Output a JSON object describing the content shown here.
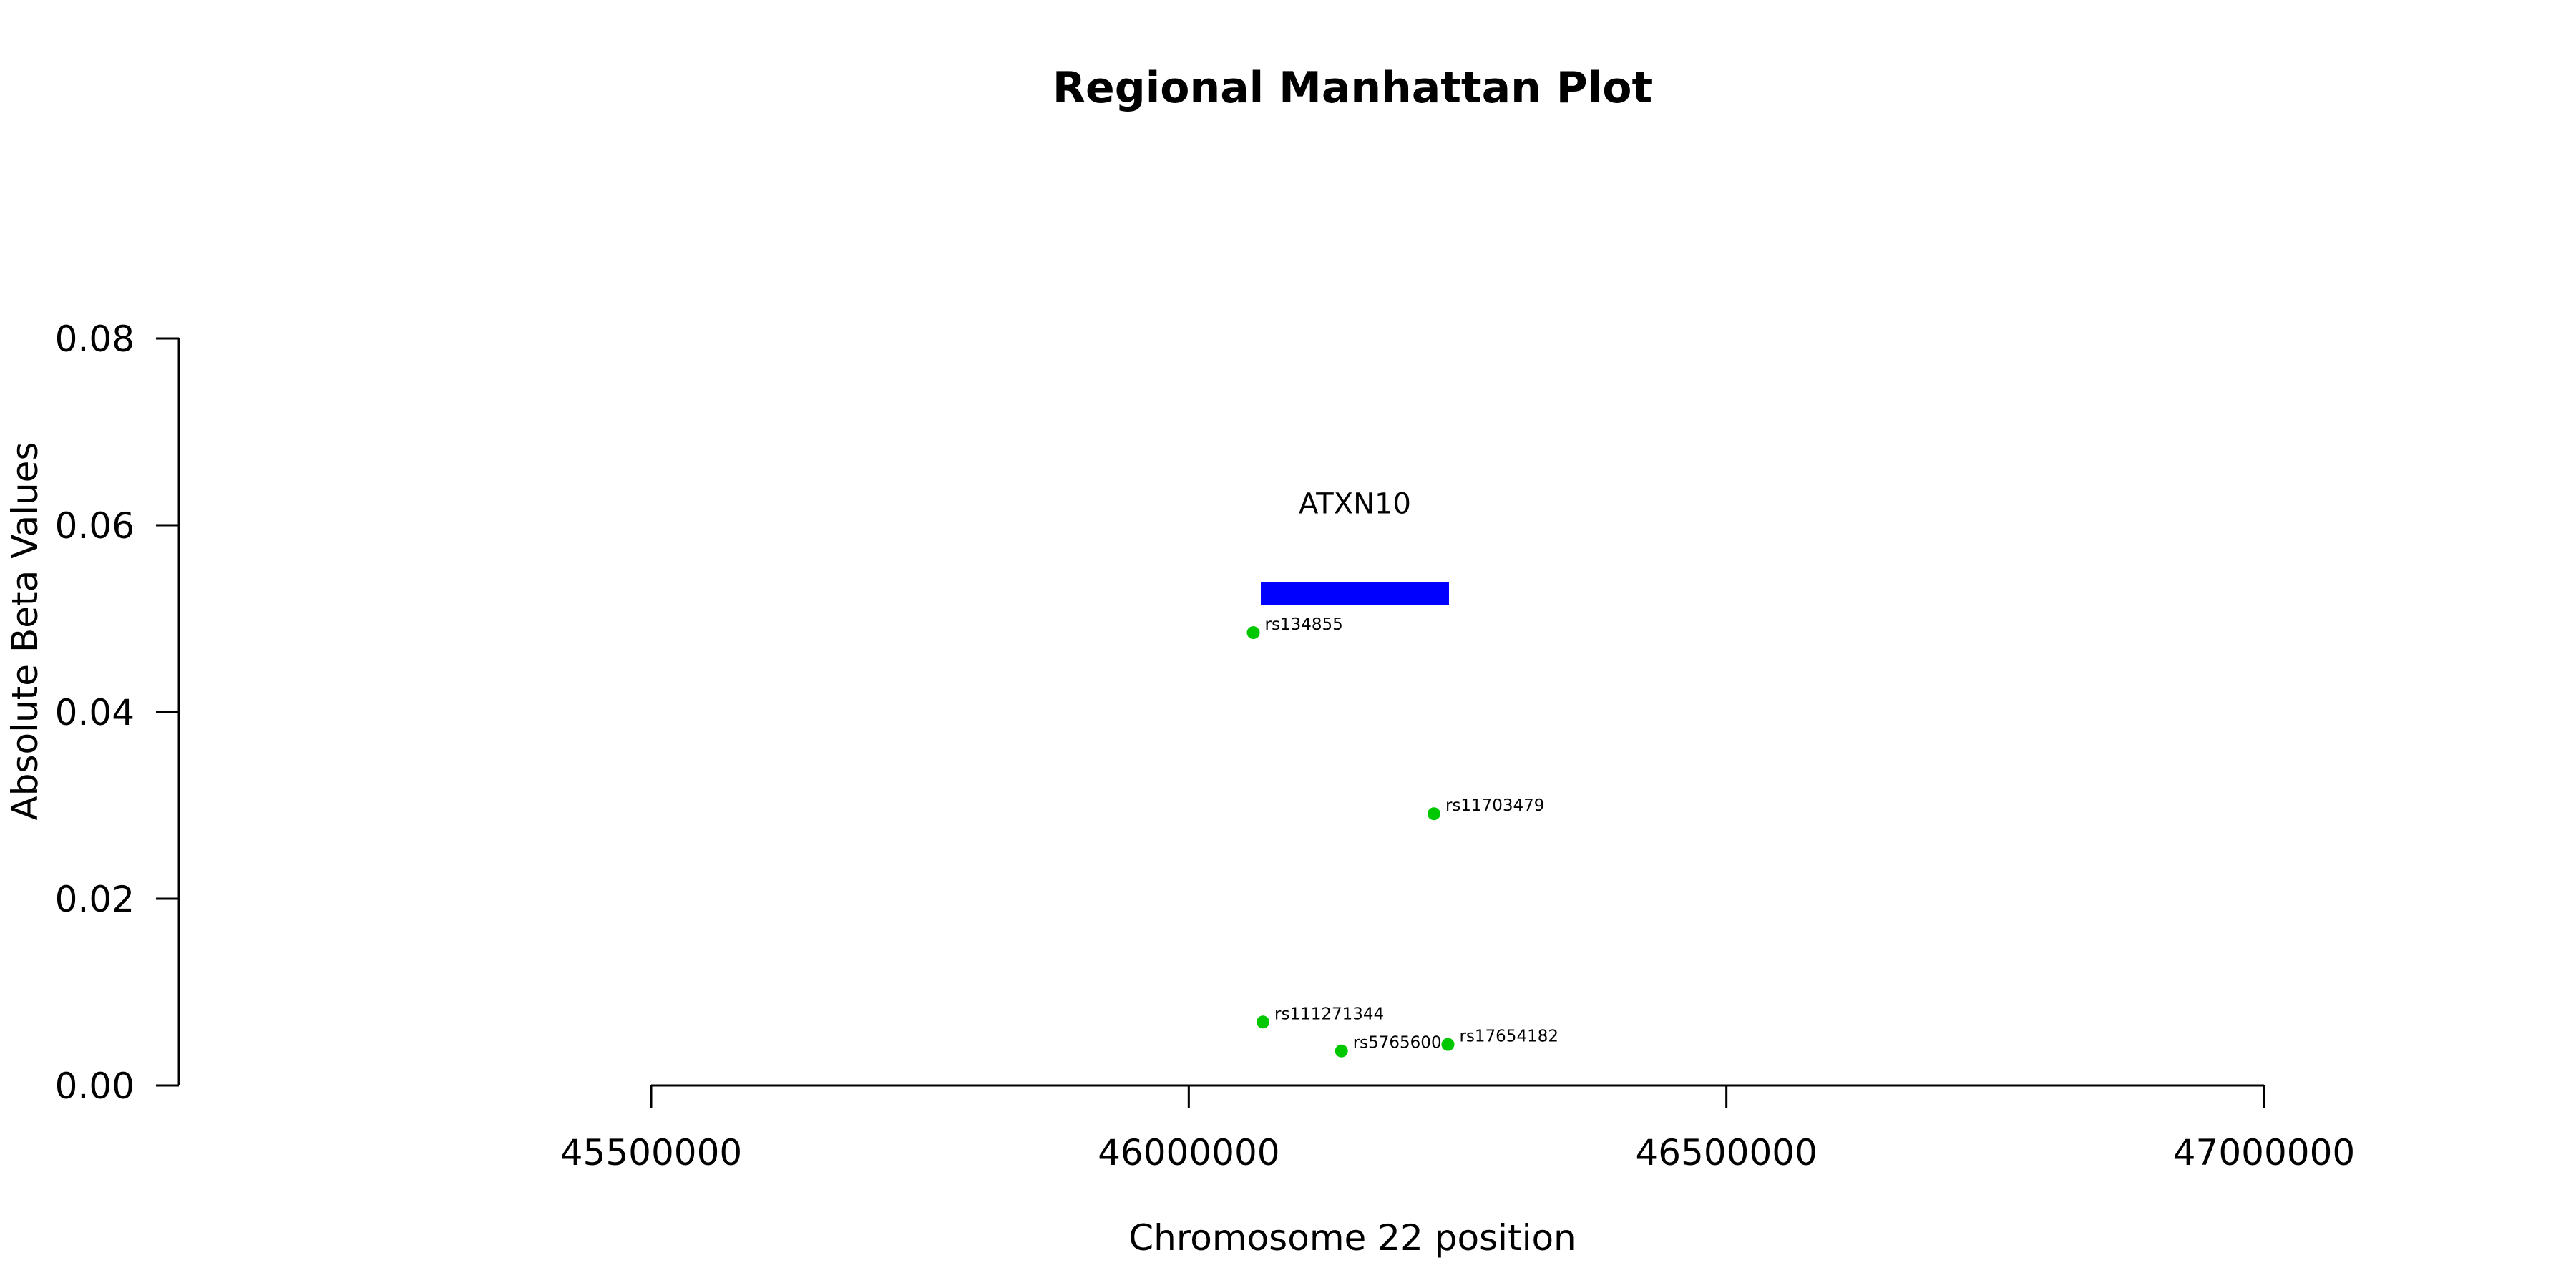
{
  "chart_data": {
    "type": "scatter",
    "title": "Regional Manhattan Plot",
    "xlabel": "Chromosome 22 position",
    "ylabel": "Absolute Beta Values",
    "xlim": [
      45500000,
      47000000
    ],
    "ylim": [
      0,
      0.08
    ],
    "x_ticks": [
      45500000,
      46000000,
      46500000,
      47000000
    ],
    "x_tick_labels": [
      "45500000",
      "46000000",
      "46500000",
      "47000000"
    ],
    "y_ticks": [
      0,
      0.02,
      0.04,
      0.06,
      0.08
    ],
    "y_tick_labels": [
      "0.00",
      "0.02",
      "0.04",
      "0.06",
      "0.08"
    ],
    "grid": false,
    "point_color": "#00c800",
    "gene_color": "#0000ff",
    "points": [
      {
        "label": "rs134855",
        "x": 46060000,
        "y": 0.0485
      },
      {
        "label": "rs11703479",
        "x": 46228000,
        "y": 0.0291
      },
      {
        "label": "rs111271344",
        "x": 46069000,
        "y": 0.0068
      },
      {
        "label": "rs5765600",
        "x": 46142000,
        "y": 0.0037
      },
      {
        "label": "rs17654182",
        "x": 46241000,
        "y": 0.0044
      }
    ],
    "genes": [
      {
        "name": "ATXN10",
        "start": 46067000,
        "end": 46242000,
        "y": 0.0527
      }
    ]
  }
}
